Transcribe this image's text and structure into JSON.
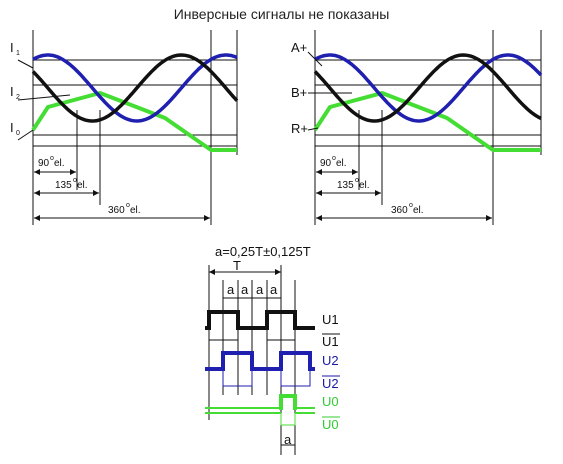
{
  "title": "Инверсные сигналы не показаны",
  "left_panel": {
    "labels": [
      {
        "main": "I",
        "sub": "1"
      },
      {
        "main": "I",
        "sub": "2"
      },
      {
        "main": "I",
        "sub": "0"
      }
    ],
    "dim_90": "90",
    "dim_135": "135",
    "dim_360": "360",
    "deg_sup": "o",
    "unit": " el."
  },
  "right_panel": {
    "labels": [
      "A+",
      "B+",
      "R+"
    ],
    "dim_90": "90",
    "dim_135": "135",
    "dim_360": "360",
    "deg_sup": "o",
    "unit": " el."
  },
  "digital": {
    "formula": "a=0,25T±0,125T",
    "period_label": "T",
    "a_label": "a",
    "labels": [
      {
        "text": "U1",
        "color": "#111111",
        "overline": false
      },
      {
        "text": "U1",
        "color": "#111111",
        "overline": true
      },
      {
        "text": "U2",
        "color": "#1a1aa6",
        "overline": false
      },
      {
        "text": "U2",
        "color": "#1a1aa6",
        "overline": true
      },
      {
        "text": "U0",
        "color": "#33cc33",
        "overline": false
      },
      {
        "text": "U0",
        "color": "#33cc33",
        "overline": true
      }
    ]
  },
  "colors": {
    "channel_1": "#111111",
    "channel_2": "#1f1fb0",
    "reference": "#44dd33"
  }
}
